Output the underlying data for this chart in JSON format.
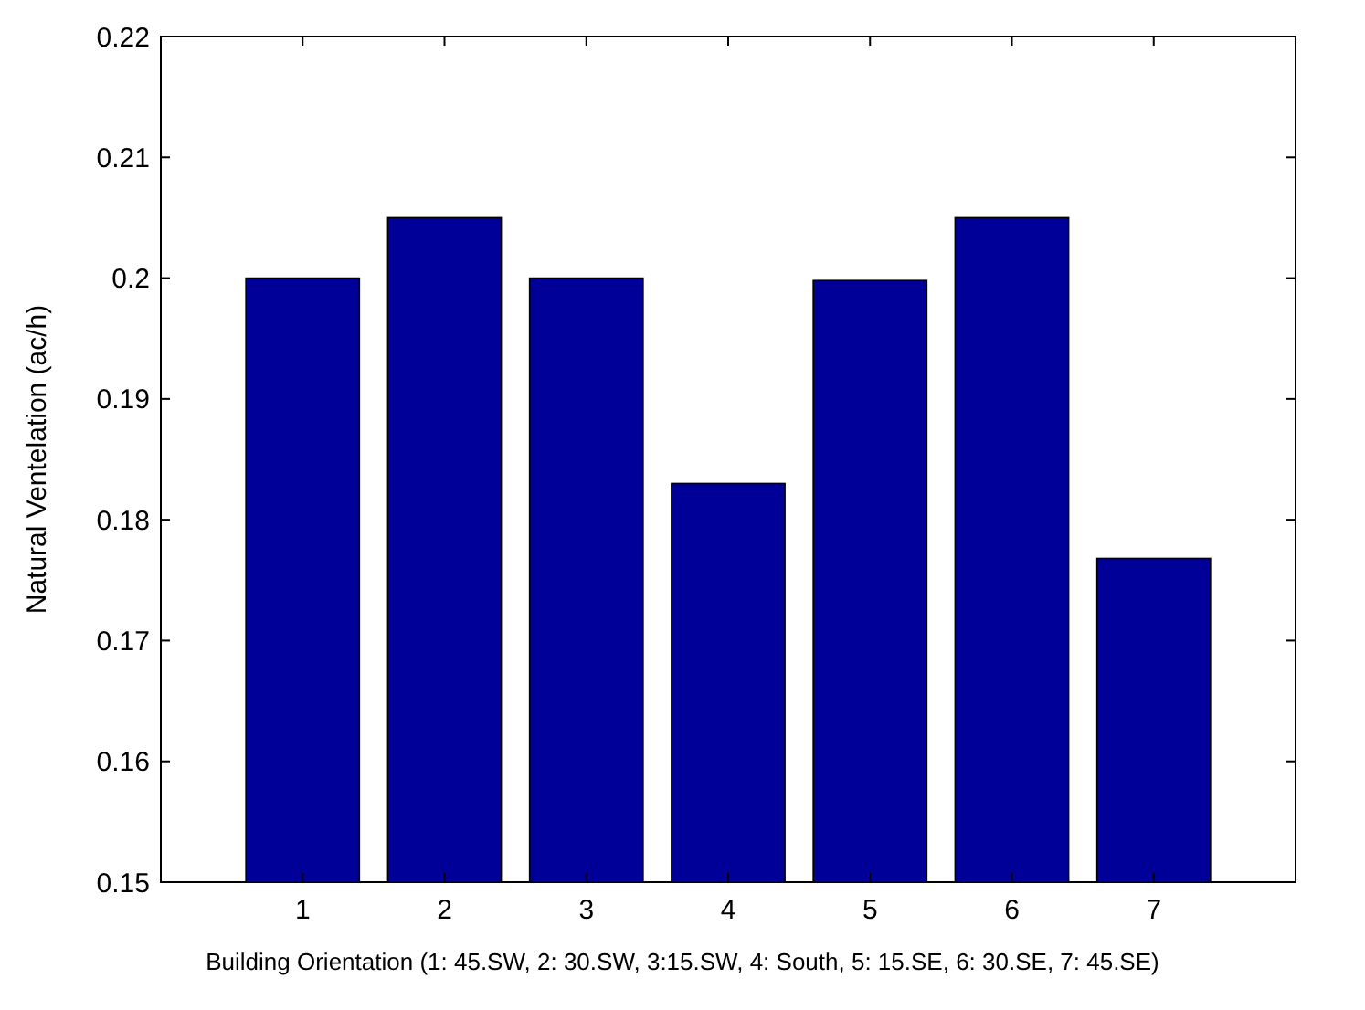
{
  "chart_data": {
    "type": "bar",
    "xlabel": "Building Orientation  (1: 45.SW, 2: 30.SW, 3:15.SW, 4: South, 5: 15.SE, 6: 30.SE, 7: 45.SE)",
    "ylabel": "Natural Ventelation (ac/h)",
    "categories": [
      "1",
      "2",
      "3",
      "4",
      "5",
      "6",
      "7"
    ],
    "values": [
      0.2,
      0.205,
      0.2,
      0.183,
      0.1998,
      0.205,
      0.1768
    ],
    "color": "#000099",
    "ylim": [
      0.15,
      0.22
    ],
    "yticks": [
      0.15,
      0.16,
      0.17,
      0.18,
      0.19,
      {
        "value": 0.2,
        "label": "0.2"
      },
      0.21,
      0.22
    ]
  }
}
